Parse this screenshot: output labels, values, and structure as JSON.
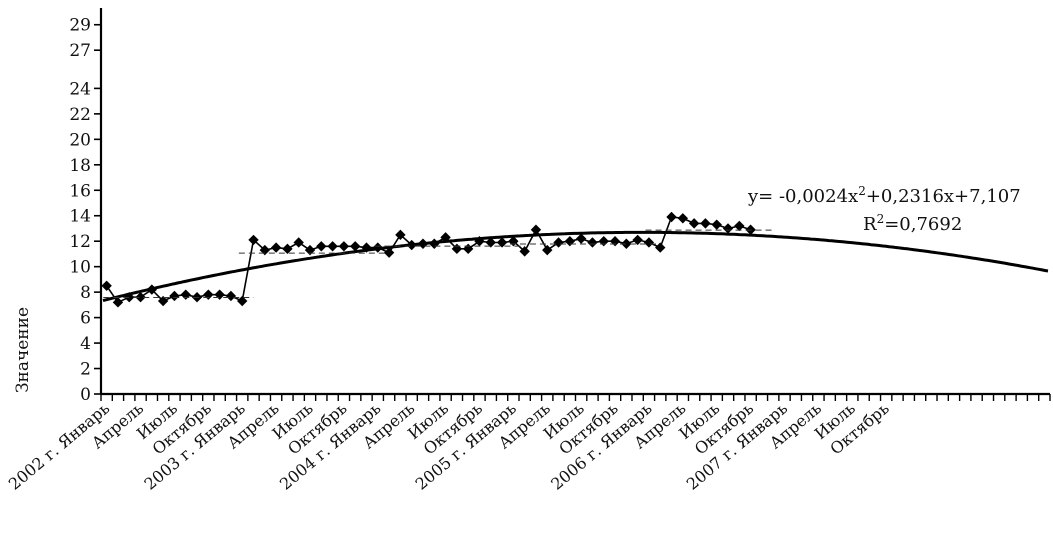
{
  "chart_data": {
    "type": "line",
    "title": "",
    "xlabel": "",
    "ylabel": "Значение",
    "ylim": [
      0,
      30
    ],
    "y_ticks": [
      0,
      2,
      4,
      6,
      8,
      10,
      12,
      14,
      16,
      18,
      20,
      22,
      24,
      27,
      29
    ],
    "x_tick_count": 84,
    "x_labels": [
      {
        "index": 0,
        "text": "2002 г. Январь"
      },
      {
        "index": 3,
        "text": "Апрель"
      },
      {
        "index": 6,
        "text": "Июль"
      },
      {
        "index": 9,
        "text": "Октябрь"
      },
      {
        "index": 12,
        "text": "2003 г. Январь"
      },
      {
        "index": 15,
        "text": "Апрель"
      },
      {
        "index": 18,
        "text": "Июль"
      },
      {
        "index": 21,
        "text": "Октябрь"
      },
      {
        "index": 24,
        "text": "2004 г. Январь"
      },
      {
        "index": 27,
        "text": "Апрель"
      },
      {
        "index": 30,
        "text": "Июль"
      },
      {
        "index": 33,
        "text": "Октябрь"
      },
      {
        "index": 36,
        "text": "2005 г. Январь"
      },
      {
        "index": 39,
        "text": "Апрель"
      },
      {
        "index": 42,
        "text": "Июль"
      },
      {
        "index": 45,
        "text": "Октябрь"
      },
      {
        "index": 48,
        "text": "2006 г. Январь"
      },
      {
        "index": 51,
        "text": "Апрель"
      },
      {
        "index": 54,
        "text": "Июль"
      },
      {
        "index": 57,
        "text": "Октябрь"
      },
      {
        "index": 60,
        "text": "2007 г. Январь"
      },
      {
        "index": 63,
        "text": "Апрель"
      },
      {
        "index": 66,
        "text": "Июль"
      },
      {
        "index": 69,
        "text": "Октябрь"
      }
    ],
    "series": [
      {
        "values": [
          8.5,
          7.2,
          7.6,
          7.6,
          8.2,
          7.3,
          7.7,
          7.8,
          7.6,
          7.8,
          7.8,
          7.7,
          7.3,
          12.1,
          11.3,
          11.5,
          11.4,
          11.9,
          11.3,
          11.6,
          11.6,
          11.6,
          11.6,
          11.5,
          11.5,
          11.1,
          12.5,
          11.7,
          11.8,
          11.8,
          12.3,
          11.4,
          11.4,
          12.0,
          11.9,
          11.9,
          12.0,
          11.2,
          12.9,
          11.3,
          11.9,
          12.0,
          12.2,
          11.9,
          12.0,
          12.0,
          11.8,
          12.1,
          11.9,
          11.5,
          13.9,
          13.8,
          13.4,
          13.4,
          13.3,
          13.0,
          13.2,
          12.9
        ]
      }
    ],
    "trendline": {
      "equation": "y= -0,0024x2+0,2316x+7,107",
      "r2": "R2=0,7692",
      "coefficients": {
        "a": -0.0024,
        "b": 0.2316,
        "c": 7.107
      },
      "x_start": 1,
      "x_end": 84
    },
    "annotation": {
      "eq_prefix": "y= -0,0024x",
      "eq_sup": "2",
      "eq_suffix": "+0,2316x+7,107",
      "r2_prefix": "R",
      "r2_sup": "2",
      "r2_suffix": "=0,7692"
    },
    "grid": false,
    "legend": "none"
  }
}
